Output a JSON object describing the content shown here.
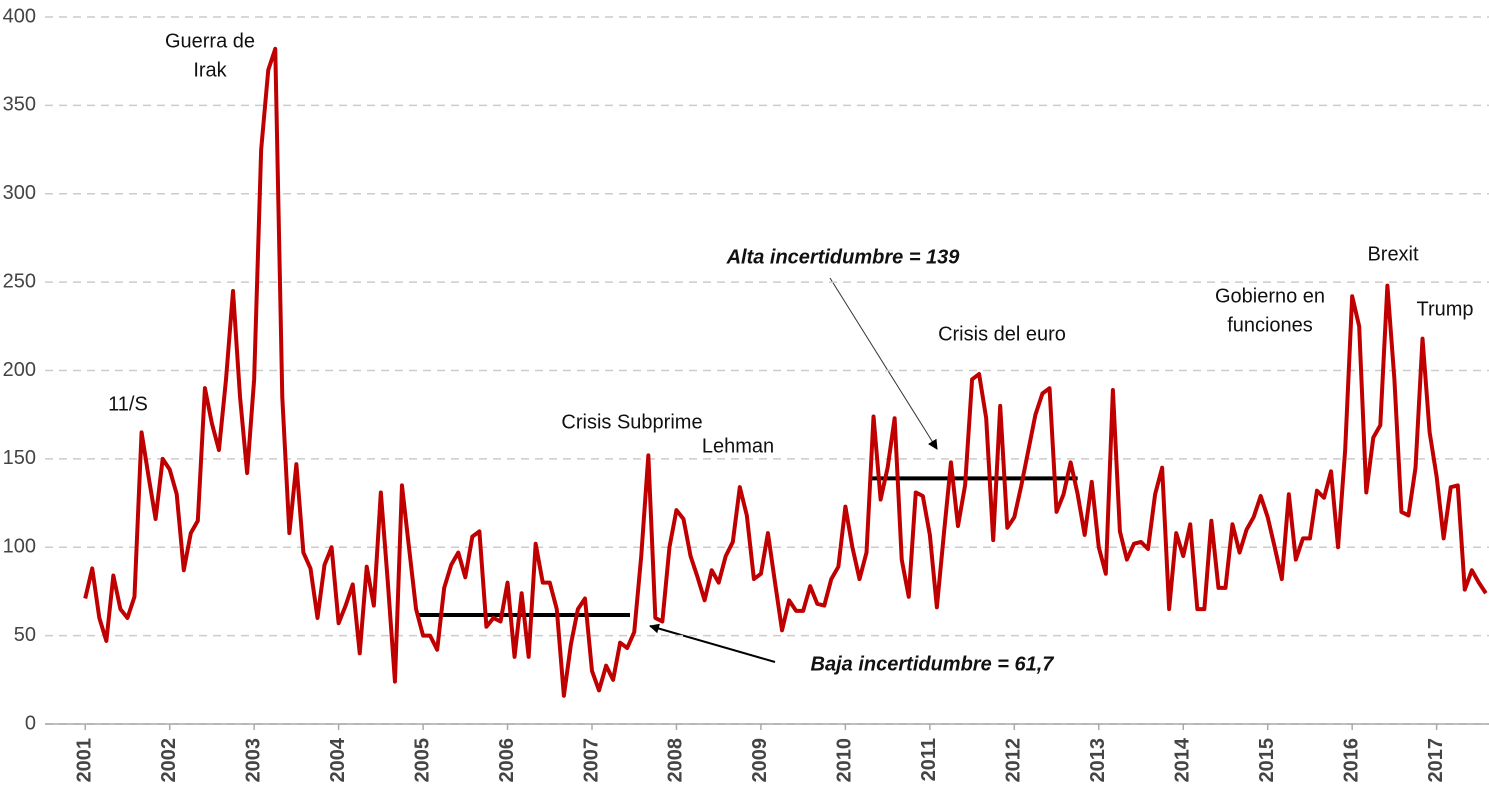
{
  "chart_data": {
    "type": "line",
    "xlim": [
      2000.95,
      2017.62
    ],
    "xticks": [
      2001,
      2002,
      2003,
      2004,
      2005,
      2006,
      2007,
      2008,
      2009,
      2010,
      2011,
      2012,
      2013,
      2014,
      2015,
      2016,
      2017
    ],
    "ylim": [
      0,
      400
    ],
    "yticks": [
      0,
      50,
      100,
      150,
      200,
      250,
      300,
      350,
      400
    ],
    "grid": true,
    "x": [
      2001,
      2001.083,
      2001.167,
      2001.25,
      2001.333,
      2001.417,
      2001.5,
      2001.583,
      2001.667,
      2001.75,
      2001.833,
      2001.917,
      2002,
      2002.083,
      2002.167,
      2002.25,
      2002.333,
      2002.417,
      2002.5,
      2002.583,
      2002.667,
      2002.75,
      2002.833,
      2002.917,
      2003,
      2003.083,
      2003.167,
      2003.25,
      2003.333,
      2003.417,
      2003.5,
      2003.583,
      2003.667,
      2003.75,
      2003.833,
      2003.917,
      2004,
      2004.083,
      2004.167,
      2004.25,
      2004.333,
      2004.417,
      2004.5,
      2004.583,
      2004.667,
      2004.75,
      2004.833,
      2004.917,
      2005,
      2005.083,
      2005.167,
      2005.25,
      2005.333,
      2005.417,
      2005.5,
      2005.583,
      2005.667,
      2005.75,
      2005.833,
      2005.917,
      2006,
      2006.083,
      2006.167,
      2006.25,
      2006.333,
      2006.417,
      2006.5,
      2006.583,
      2006.667,
      2006.75,
      2006.833,
      2006.917,
      2007,
      2007.083,
      2007.167,
      2007.25,
      2007.333,
      2007.417,
      2007.5,
      2007.583,
      2007.667,
      2007.75,
      2007.833,
      2007.917,
      2008,
      2008.083,
      2008.167,
      2008.25,
      2008.333,
      2008.417,
      2008.5,
      2008.583,
      2008.667,
      2008.75,
      2008.833,
      2008.917,
      2009,
      2009.083,
      2009.167,
      2009.25,
      2009.333,
      2009.417,
      2009.5,
      2009.583,
      2009.667,
      2009.75,
      2009.833,
      2009.917,
      2010,
      2010.083,
      2010.167,
      2010.25,
      2010.333,
      2010.417,
      2010.5,
      2010.583,
      2010.667,
      2010.75,
      2010.833,
      2010.917,
      2011,
      2011.083,
      2011.167,
      2011.25,
      2011.333,
      2011.417,
      2011.5,
      2011.583,
      2011.667,
      2011.75,
      2011.833,
      2011.917,
      2012,
      2012.083,
      2012.167,
      2012.25,
      2012.333,
      2012.417,
      2012.5,
      2012.583,
      2012.667,
      2012.75,
      2012.833,
      2012.917,
      2013,
      2013.083,
      2013.167,
      2013.25,
      2013.333,
      2013.417,
      2013.5,
      2013.583,
      2013.667,
      2013.75,
      2013.833,
      2013.917,
      2014,
      2014.083,
      2014.167,
      2014.25,
      2014.333,
      2014.417,
      2014.5,
      2014.583,
      2014.667,
      2014.75,
      2014.833,
      2014.917,
      2015,
      2015.083,
      2015.167,
      2015.25,
      2015.333,
      2015.417,
      2015.5,
      2015.583,
      2015.667,
      2015.75,
      2015.833,
      2015.917,
      2016,
      2016.083,
      2016.167,
      2016.25,
      2016.333,
      2016.417,
      2016.5,
      2016.583,
      2016.667,
      2016.75,
      2016.833,
      2016.917,
      2017,
      2017.083,
      2017.167,
      2017.25,
      2017.333,
      2017.417,
      2017.5,
      2017.583
    ],
    "series": [
      {
        "color": "#c00000",
        "values": [
          71,
          88,
          60,
          47,
          84,
          65,
          60,
          72,
          165,
          140,
          116,
          150,
          144,
          130,
          87,
          108,
          115,
          190,
          170,
          155,
          195,
          245,
          185,
          142,
          195,
          325,
          370,
          382,
          185,
          108,
          147,
          97,
          88,
          60,
          90,
          100,
          57,
          67,
          79,
          40,
          89,
          67,
          131,
          80,
          24,
          135,
          100,
          65,
          50,
          50,
          42,
          77,
          90,
          97,
          83,
          106,
          109,
          55,
          60,
          58,
          80,
          38,
          74,
          38,
          102,
          80,
          80,
          65,
          16,
          45,
          65,
          71,
          30,
          19,
          33,
          25,
          46,
          43,
          52,
          95,
          152,
          60,
          58,
          100,
          121,
          116,
          95,
          83,
          70,
          87,
          80,
          95,
          103,
          134,
          118,
          82,
          85,
          108,
          80,
          53,
          70,
          64,
          64,
          78,
          68,
          67,
          82,
          89,
          123,
          100,
          82,
          97,
          174,
          127,
          145,
          173,
          93,
          72,
          131,
          129,
          107,
          66,
          108,
          148,
          112,
          135,
          195,
          198,
          173,
          104,
          180,
          111,
          117,
          135,
          155,
          175,
          187,
          190,
          120,
          130,
          148,
          130,
          107,
          137,
          100,
          85,
          189,
          109,
          93,
          102,
          103,
          99,
          130,
          145,
          65,
          108,
          95,
          113,
          65,
          65,
          115,
          77,
          77,
          113,
          97,
          110,
          117,
          129,
          117,
          100,
          82,
          130,
          93,
          105,
          105,
          132,
          128,
          143,
          100,
          155,
          242,
          225,
          131,
          162,
          169,
          248,
          195,
          120,
          118,
          145,
          218,
          165,
          140,
          105,
          134,
          135,
          76,
          87,
          80,
          74
        ]
      }
    ],
    "reference_lines": [
      {
        "label": "Baja incertidumbre = 61,7",
        "value": 61.7,
        "start": 2004.95,
        "end": 2007.45
      },
      {
        "label": "Alta incertidumbre = 139",
        "value": 139,
        "start": 2010.3,
        "end": 2012.75
      }
    ],
    "annotations": [
      [
        "Guerra de",
        "Irak"
      ],
      [
        "11/S"
      ],
      [
        "Crisis Subprime"
      ],
      [
        "Lehman"
      ],
      [
        "Crisis del euro"
      ],
      [
        "Gobierno en",
        "funciones"
      ],
      [
        "Brexit"
      ],
      [
        "Trump"
      ]
    ]
  }
}
